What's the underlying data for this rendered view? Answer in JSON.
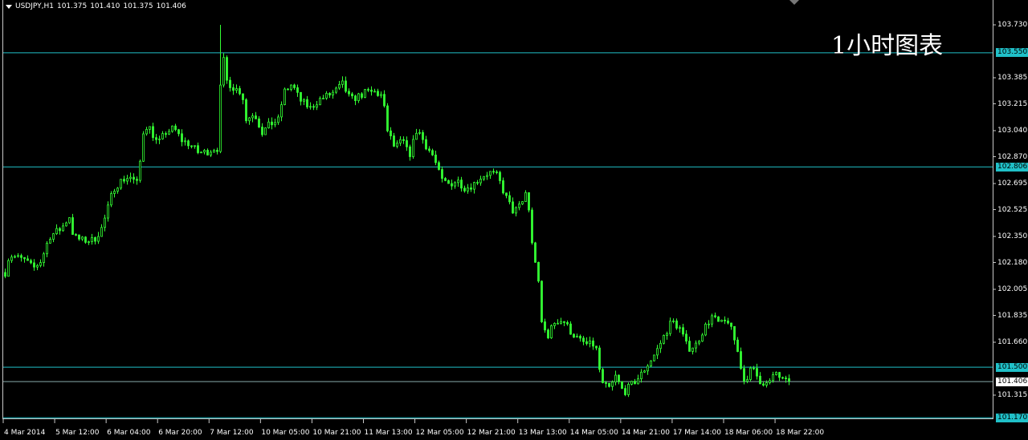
{
  "header": {
    "symbol": "USDJPY,H1",
    "open": "101.375",
    "high": "101.410",
    "low": "101.375",
    "close": "101.406"
  },
  "watermark": "1小时图表",
  "chart_data": {
    "type": "candlestick",
    "symbol": "USDJPY",
    "timeframe": "H1",
    "ylim": [
      101.14,
      103.84
    ],
    "grid": false,
    "candle_color": "#33ff33",
    "hline_color": "#20c0c8",
    "y_ticks": [
      "103.730",
      "103.385",
      "103.215",
      "103.040",
      "102.870",
      "102.695",
      "102.525",
      "102.350",
      "102.180",
      "102.005",
      "101.835",
      "101.660",
      "101.315"
    ],
    "x_ticks": [
      "4 Mar 2014",
      "5 Mar 12:00",
      "6 Mar 04:00",
      "6 Mar 20:00",
      "7 Mar 12:00",
      "10 Mar 05:00",
      "10 Mar 21:00",
      "11 Mar 13:00",
      "12 Mar 05:00",
      "12 Mar 21:00",
      "13 Mar 13:00",
      "14 Mar 05:00",
      "14 Mar 21:00",
      "17 Mar 14:00",
      "18 Mar 06:00",
      "18 Mar 22:00"
    ],
    "horizontal_lines": [
      {
        "price": 103.55,
        "label": "103.550"
      },
      {
        "price": 102.806,
        "label": "102.806"
      },
      {
        "price": 101.5,
        "label": "101.500"
      },
      {
        "price": 101.17,
        "label": "101.170"
      }
    ],
    "bid_line": {
      "price": 101.406,
      "label": "101.406"
    },
    "period_high": 103.73,
    "close_trace": [
      102.115,
      102.23,
      102.193,
      102.141,
      102.193,
      102.35,
      102.402,
      102.481,
      102.35,
      102.324,
      102.324,
      102.402,
      102.481,
      102.664,
      102.716,
      102.742,
      102.69,
      103.082,
      103.056,
      102.951,
      103.03,
      103.056,
      102.977,
      102.951,
      102.899,
      102.899,
      102.925,
      102.925,
      103.578,
      103.369,
      103.317,
      103.291,
      103.108,
      103.16,
      103.03,
      103.082,
      103.108,
      103.291,
      103.343,
      103.239,
      103.186,
      103.239,
      103.265,
      103.291,
      103.343,
      103.239,
      103.265,
      103.291,
      103.291,
      103.265,
      103.056,
      102.925,
      102.977,
      102.873,
      103.056,
      102.951,
      102.873,
      102.716,
      102.69,
      102.716,
      102.664,
      102.69,
      102.742,
      102.768,
      102.742,
      102.611,
      102.507,
      102.559,
      102.664,
      102.324,
      102.115,
      101.801,
      101.697,
      101.801,
      101.801,
      101.723,
      101.671,
      101.644,
      101.644,
      101.383,
      101.357,
      101.435,
      101.331,
      101.383,
      101.435,
      101.514,
      101.592,
      101.697,
      101.801,
      101.749,
      101.618,
      101.644,
      101.749,
      101.827,
      101.775,
      101.801,
      101.644,
      101.409,
      101.488,
      101.409,
      101.383,
      101.461,
      101.396,
      101.406
    ]
  }
}
